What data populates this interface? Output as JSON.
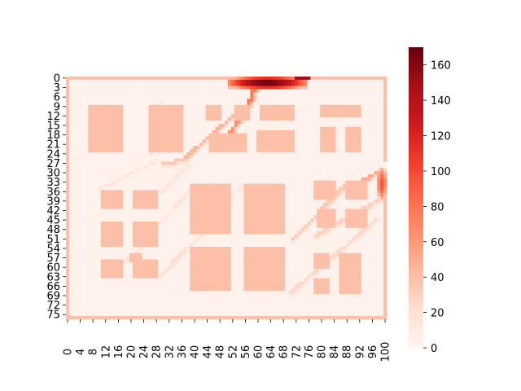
{
  "chart_data": {
    "type": "heatmap",
    "title": "",
    "xlabel": "",
    "ylabel": "",
    "x_range": [
      0,
      101
    ],
    "y_range": [
      0,
      77
    ],
    "x_ticks": [
      "0",
      "4",
      "8",
      "12",
      "16",
      "20",
      "24",
      "28",
      "32",
      "36",
      "40",
      "44",
      "48",
      "52",
      "56",
      "60",
      "64",
      "68",
      "72",
      "76",
      "80",
      "84",
      "88",
      "92",
      "96",
      "100"
    ],
    "y_ticks": [
      "0",
      "3",
      "6",
      "9",
      "12",
      "15",
      "18",
      "21",
      "24",
      "27",
      "30",
      "33",
      "36",
      "39",
      "42",
      "45",
      "48",
      "51",
      "54",
      "57",
      "60",
      "63",
      "66",
      "69",
      "72",
      "75"
    ],
    "colorbar": {
      "colormap": "Reds",
      "range": [
        0,
        170
      ],
      "ticks": [
        "0",
        "20",
        "40",
        "60",
        "80",
        "100",
        "120",
        "140",
        "160"
      ]
    },
    "background_value": 3,
    "border_value": 40,
    "obstacle_value": 40,
    "obstacles": [
      {
        "x0": 7,
        "x1": 18,
        "y0": 9,
        "y1": 24
      },
      {
        "x0": 26,
        "x1": 37,
        "y0": 9,
        "y1": 24
      },
      {
        "x0": 44,
        "x1": 49,
        "y0": 9,
        "y1": 14
      },
      {
        "x0": 53,
        "x1": 58,
        "y0": 9,
        "y1": 14
      },
      {
        "x0": 61,
        "x1": 72,
        "y0": 9,
        "y1": 14
      },
      {
        "x0": 45,
        "x1": 57,
        "y0": 18,
        "y1": 24
      },
      {
        "x0": 60,
        "x1": 72,
        "y0": 17,
        "y1": 24
      },
      {
        "x0": 80,
        "x1": 93,
        "y0": 9,
        "y1": 13
      },
      {
        "x0": 80,
        "x1": 85,
        "y0": 16,
        "y1": 24
      },
      {
        "x0": 88,
        "x1": 93,
        "y0": 16,
        "y1": 24
      },
      {
        "x0": 11,
        "x1": 18,
        "y0": 36,
        "y1": 42
      },
      {
        "x0": 21,
        "x1": 29,
        "y0": 36,
        "y1": 42
      },
      {
        "x0": 11,
        "x1": 18,
        "y0": 46,
        "y1": 54
      },
      {
        "x0": 21,
        "x1": 29,
        "y0": 46,
        "y1": 54
      },
      {
        "x0": 20,
        "x1": 24,
        "y0": 56,
        "y1": 59
      },
      {
        "x0": 11,
        "x1": 18,
        "y0": 58,
        "y1": 64
      },
      {
        "x0": 21,
        "x1": 29,
        "y0": 58,
        "y1": 64
      },
      {
        "x0": 39,
        "x1": 52,
        "y0": 34,
        "y1": 50
      },
      {
        "x0": 56,
        "x1": 69,
        "y0": 34,
        "y1": 50
      },
      {
        "x0": 39,
        "x1": 52,
        "y0": 54,
        "y1": 68
      },
      {
        "x0": 56,
        "x1": 69,
        "y0": 54,
        "y1": 68
      },
      {
        "x0": 78,
        "x1": 85,
        "y0": 33,
        "y1": 39
      },
      {
        "x0": 88,
        "x1": 95,
        "y0": 33,
        "y1": 39
      },
      {
        "x0": 79,
        "x1": 85,
        "y0": 42,
        "y1": 48
      },
      {
        "x0": 88,
        "x1": 95,
        "y0": 42,
        "y1": 48
      },
      {
        "x0": 78,
        "x1": 83,
        "y0": 56,
        "y1": 61
      },
      {
        "x0": 78,
        "x1": 83,
        "y0": 64,
        "y1": 69
      },
      {
        "x0": 86,
        "x1": 93,
        "y0": 56,
        "y1": 69
      }
    ],
    "hotspots": [
      {
        "x0": 51,
        "x1": 76,
        "y0": 0,
        "y1": 4,
        "peak": 170
      },
      {
        "x0": 98,
        "x1": 101,
        "y0": 29,
        "y1": 39,
        "peak": 95
      }
    ],
    "trails": [
      {
        "from": [
          50,
          19
        ],
        "to": [
          57,
          8
        ],
        "value": 65
      },
      {
        "from": [
          37,
          25
        ],
        "to": [
          52,
          12
        ],
        "value": 45
      },
      {
        "from": [
          57,
          8
        ],
        "to": [
          59,
          2
        ],
        "value": 75
      },
      {
        "from": [
          37,
          26
        ],
        "to": [
          30,
          27
        ],
        "value": 35
      },
      {
        "from": [
          71,
          51
        ],
        "to": [
          88,
          33
        ],
        "value": 35
      },
      {
        "from": [
          92,
          33
        ],
        "to": [
          99,
          29
        ],
        "value": 50
      },
      {
        "from": [
          78,
          50
        ],
        "to": [
          99,
          38
        ],
        "value": 30
      },
      {
        "from": [
          70,
          68
        ],
        "to": [
          97,
          45
        ],
        "value": 25
      },
      {
        "from": [
          29,
          63
        ],
        "to": [
          37,
          54
        ],
        "value": 22
      },
      {
        "from": [
          39,
          53
        ],
        "to": [
          45,
          46
        ],
        "value": 18
      },
      {
        "from": [
          10,
          35
        ],
        "to": [
          28,
          26
        ],
        "value": 15
      },
      {
        "from": [
          29,
          36
        ],
        "to": [
          38,
          27
        ],
        "value": 15
      },
      {
        "from": [
          29,
          46
        ],
        "to": [
          39,
          35
        ],
        "value": 15
      },
      {
        "from": [
          18,
          58
        ],
        "to": [
          24,
          53
        ],
        "value": 18
      },
      {
        "from": [
          26,
          24
        ],
        "to": [
          29,
          8
        ],
        "value": 15
      },
      {
        "from": [
          40,
          50
        ],
        "to": [
          55,
          34
        ],
        "value": 12
      }
    ]
  }
}
